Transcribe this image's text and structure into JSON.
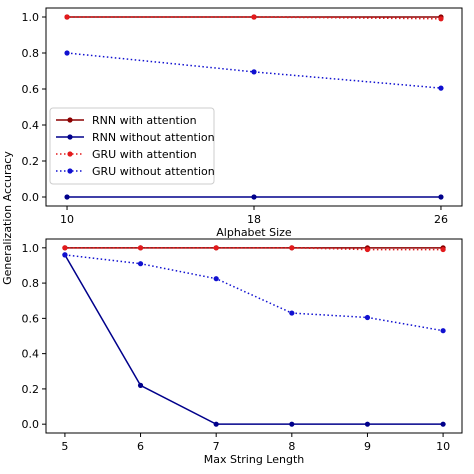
{
  "figure": {
    "shared_ylabel": "Generalization Accuracy"
  },
  "chart_data": [
    {
      "type": "line",
      "xlabel": "Alphabet Size",
      "ylabel": "Generalization Accuracy",
      "x": [
        10,
        18,
        26
      ],
      "xlim": [
        9.1,
        26.9
      ],
      "ylim": [
        -0.05,
        1.05
      ],
      "xticks": [
        10,
        18,
        26
      ],
      "yticks": [
        0.0,
        0.2,
        0.4,
        0.6,
        0.8,
        1.0
      ],
      "legend_position": "lower-left",
      "series": [
        {
          "name": "RNN with attention",
          "values": [
            1.0,
            1.0,
            1.0
          ],
          "color": "#8b0000",
          "linestyle": "solid"
        },
        {
          "name": "RNN without attention",
          "values": [
            0.0,
            0.0,
            0.0
          ],
          "color": "#00008b",
          "linestyle": "solid"
        },
        {
          "name": "GRU with attention",
          "values": [
            1.0,
            1.0,
            0.99
          ],
          "color": "#e31a1c",
          "linestyle": "dotted"
        },
        {
          "name": "GRU without attention",
          "values": [
            0.8,
            0.695,
            0.605
          ],
          "color": "#1010d0",
          "linestyle": "dotted"
        }
      ]
    },
    {
      "type": "line",
      "xlabel": "Max String Length",
      "ylabel": "Generalization Accuracy",
      "x": [
        5,
        6,
        7,
        8,
        9,
        10
      ],
      "xlim": [
        4.75,
        10.25
      ],
      "ylim": [
        -0.05,
        1.05
      ],
      "xticks": [
        5,
        6,
        7,
        8,
        9,
        10
      ],
      "yticks": [
        0.0,
        0.2,
        0.4,
        0.6,
        0.8,
        1.0
      ],
      "series": [
        {
          "name": "RNN with attention",
          "values": [
            1.0,
            1.0,
            1.0,
            1.0,
            1.0,
            1.0
          ],
          "color": "#8b0000",
          "linestyle": "solid"
        },
        {
          "name": "RNN without attention",
          "values": [
            0.96,
            0.22,
            0.0,
            0.0,
            0.0,
            0.0
          ],
          "color": "#00008b",
          "linestyle": "solid"
        },
        {
          "name": "GRU with attention",
          "values": [
            1.0,
            1.0,
            1.0,
            1.0,
            0.99,
            0.99
          ],
          "color": "#e31a1c",
          "linestyle": "dotted"
        },
        {
          "name": "GRU without attention",
          "values": [
            0.96,
            0.91,
            0.825,
            0.63,
            0.605,
            0.53
          ],
          "color": "#1010d0",
          "linestyle": "dotted"
        }
      ]
    }
  ]
}
